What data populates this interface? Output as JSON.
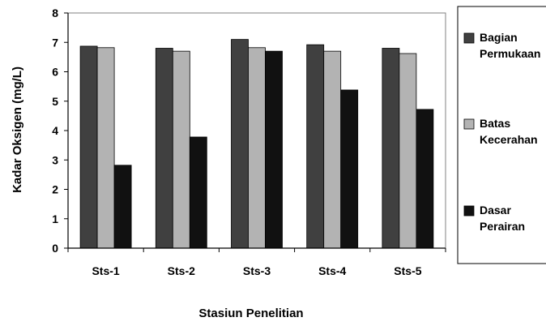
{
  "chart_data": {
    "type": "bar",
    "categories": [
      "Sts-1",
      "Sts-2",
      "Sts-3",
      "Sts-4",
      "Sts-5"
    ],
    "series": [
      {
        "name": "Bagian Permukaan",
        "legend_lines": [
          "Bagian",
          "Permukaan"
        ],
        "color": "#404040",
        "values": [
          6.87,
          6.8,
          7.1,
          6.92,
          6.8
        ]
      },
      {
        "name": "Batas Kecerahan",
        "legend_lines": [
          "Batas",
          "Kecerahan"
        ],
        "color": "#b3b3b3",
        "values": [
          6.82,
          6.7,
          6.82,
          6.7,
          6.62
        ]
      },
      {
        "name": "Dasar Perairan",
        "legend_lines": [
          "Dasar",
          "Perairan"
        ],
        "color": "#111111",
        "values": [
          2.82,
          3.78,
          6.7,
          5.38,
          4.72
        ]
      }
    ],
    "title": "",
    "xlabel": "Stasiun Penelitian",
    "ylabel": "Kadar Oksigen (mg/L)",
    "ylim": [
      0,
      8
    ],
    "yticks": [
      "0",
      "1",
      "2",
      "3",
      "4",
      "5",
      "6",
      "7",
      "8"
    ],
    "grid": false,
    "legend_position": "right"
  }
}
